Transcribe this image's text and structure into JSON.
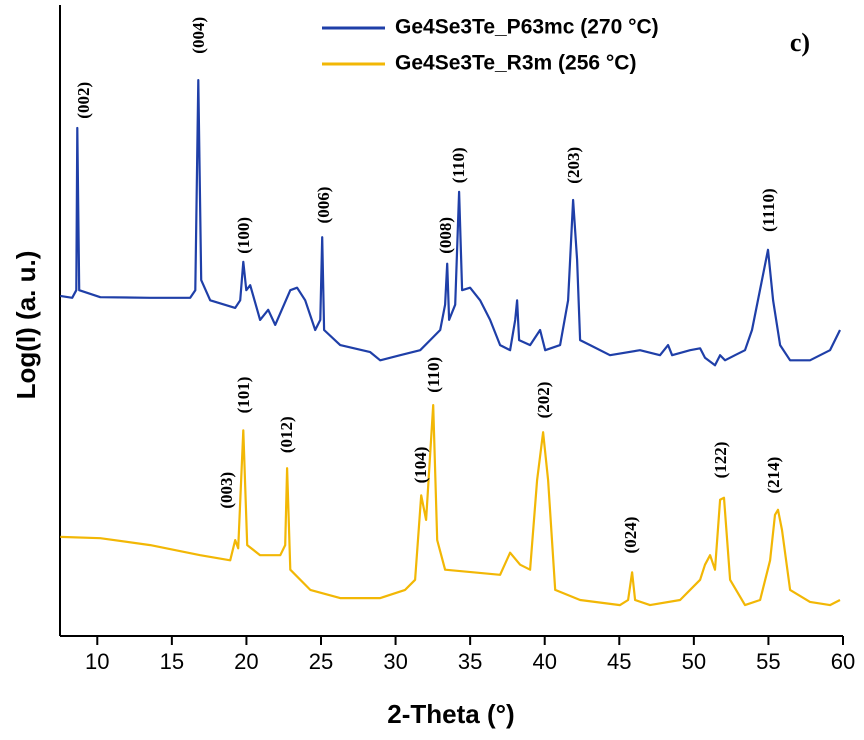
{
  "chart_data": {
    "type": "line",
    "xlabel": "2-Theta (°)",
    "ylabel": "Log(I) (a. u.)",
    "panel_label": "c)",
    "xlim": [
      7.5,
      60
    ],
    "xticks": [
      10,
      15,
      20,
      25,
      30,
      35,
      40,
      45,
      50,
      55,
      60
    ],
    "ylim": [
      0,
      100
    ],
    "legend": "top",
    "series": [
      {
        "name": "Ge4Se3Te_P63mc (270 °C)",
        "color": "#1f3fa8",
        "x": [
          7.52,
          8.32,
          8.59,
          8.66,
          8.79,
          10.2,
          13.55,
          16.23,
          16.57,
          16.77,
          16.97,
          17.57,
          19.25,
          19.58,
          19.79,
          19.99,
          20.25,
          20.92,
          21.46,
          21.93,
          22.94,
          23.4,
          23.94,
          24.61,
          24.95,
          25.08,
          25.21,
          26.29,
          28.3,
          28.97,
          30.31,
          31.65,
          32.32,
          32.99,
          33.32,
          33.46,
          33.59,
          34.0,
          34.26,
          34.46,
          35.0,
          35.67,
          36.34,
          37.01,
          37.68,
          38.02,
          38.15,
          38.28,
          39.02,
          39.69,
          40.03,
          41.03,
          41.57,
          41.9,
          42.17,
          42.37,
          43.04,
          44.38,
          46.39,
          47.73,
          48.27,
          48.54,
          49.75,
          50.42,
          50.75,
          51.42,
          51.76,
          52.09,
          52.76,
          53.43,
          53.9,
          54.97,
          55.31,
          55.78,
          56.45,
          57.79,
          59.13,
          59.8
        ],
        "values": [
          53.9,
          53.6,
          54.8,
          80.5,
          54.8,
          53.7,
          53.6,
          53.6,
          54.8,
          88.1,
          56.4,
          53.2,
          52.0,
          53.2,
          59.3,
          54.8,
          55.6,
          50.1,
          51.7,
          49.3,
          54.8,
          55.2,
          53.2,
          48.5,
          50.1,
          63.2,
          48.5,
          46.1,
          45.0,
          43.7,
          44.5,
          45.3,
          46.9,
          48.5,
          52.5,
          59.0,
          50.1,
          52.5,
          70.4,
          54.8,
          55.2,
          53.2,
          50.1,
          46.1,
          45.3,
          50.1,
          53.2,
          46.9,
          46.1,
          48.5,
          45.3,
          46.1,
          53.2,
          69.1,
          59.6,
          46.9,
          46.1,
          44.5,
          45.3,
          44.5,
          46.1,
          44.5,
          45.3,
          45.6,
          44.1,
          42.9,
          44.5,
          43.7,
          44.5,
          45.3,
          48.5,
          61.2,
          53.2,
          46.1,
          43.7,
          43.7,
          45.3,
          48.5
        ]
      },
      {
        "name": "Ge4Se3Te_R3m (256 °C)",
        "color": "#f2b705",
        "x": [
          7.52,
          10.2,
          13.55,
          16.9,
          18.91,
          19.25,
          19.45,
          19.79,
          20.05,
          20.92,
          22.27,
          22.6,
          22.73,
          22.94,
          24.28,
          26.29,
          28.97,
          30.64,
          31.31,
          31.72,
          32.05,
          32.52,
          32.79,
          33.32,
          37.01,
          37.68,
          38.35,
          39.02,
          39.49,
          39.89,
          40.23,
          40.7,
          42.37,
          45.05,
          45.59,
          45.86,
          46.06,
          47.06,
          49.08,
          50.42,
          50.75,
          51.09,
          51.42,
          51.76,
          52.02,
          52.43,
          53.43,
          54.44,
          55.11,
          55.44,
          55.64,
          55.91,
          56.45,
          57.79,
          59.13,
          59.8
        ],
        "values": [
          15.7,
          15.5,
          14.4,
          12.8,
          12.0,
          15.2,
          13.9,
          32.6,
          14.4,
          12.8,
          12.8,
          14.4,
          26.6,
          10.5,
          7.3,
          6.0,
          6.0,
          7.3,
          8.9,
          22.3,
          18.4,
          36.6,
          15.2,
          10.5,
          9.7,
          13.2,
          11.3,
          10.5,
          24.7,
          32.3,
          24.7,
          7.3,
          5.7,
          4.9,
          5.7,
          10.1,
          5.7,
          4.9,
          5.7,
          8.9,
          11.3,
          12.8,
          10.5,
          21.6,
          21.9,
          8.9,
          4.9,
          5.7,
          12.0,
          19.2,
          20.0,
          16.8,
          7.3,
          5.4,
          4.9,
          5.7
        ]
      }
    ],
    "annotations": [
      {
        "text": "(002)",
        "x": 9.2,
        "y": 84.9
      },
      {
        "text": "(004)",
        "x": 16.9,
        "y": 95.2
      },
      {
        "text": "(100)",
        "x": 19.92,
        "y": 63.5
      },
      {
        "text": "(006)",
        "x": 25.28,
        "y": 68.3
      },
      {
        "text": "(008)",
        "x": 33.46,
        "y": 63.5
      },
      {
        "text": "(110)",
        "x": 34.33,
        "y": 74.6
      },
      {
        "text": "(203)",
        "x": 42.04,
        "y": 74.6
      },
      {
        "text": "(1110)",
        "x": 55.11,
        "y": 67.5
      },
      {
        "text": "(003)",
        "x": 18.78,
        "y": 23.1
      },
      {
        "text": "(101)",
        "x": 19.92,
        "y": 38.2
      },
      {
        "text": "(012)",
        "x": 22.8,
        "y": 31.9
      },
      {
        "text": "(104)",
        "x": 31.78,
        "y": 27.1
      },
      {
        "text": "(110)",
        "x": 32.65,
        "y": 41.4
      },
      {
        "text": "(202)",
        "x": 40.03,
        "y": 37.4
      },
      {
        "text": "(024)",
        "x": 45.86,
        "y": 16.0
      },
      {
        "text": "(122)",
        "x": 51.89,
        "y": 27.9
      },
      {
        "text": "(214)",
        "x": 55.44,
        "y": 25.5
      }
    ]
  }
}
